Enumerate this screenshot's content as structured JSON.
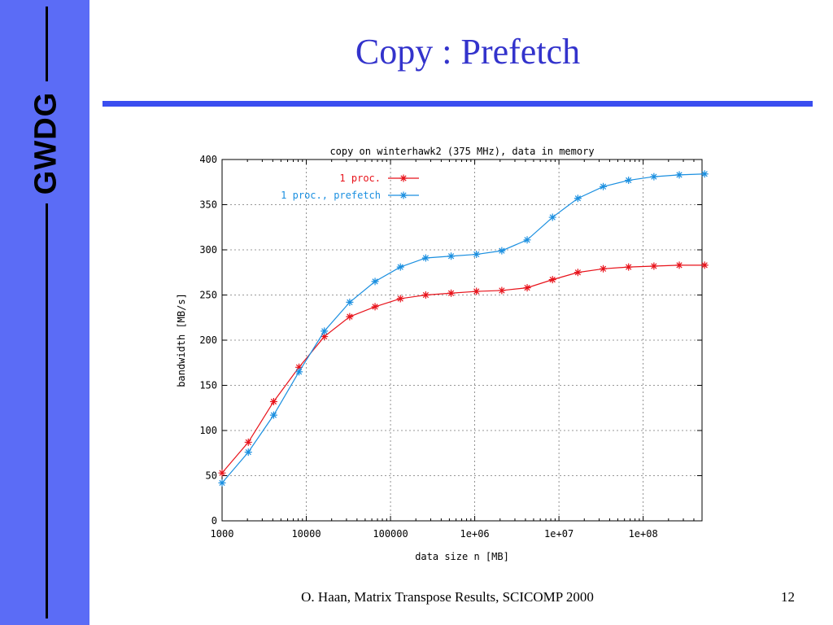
{
  "sidebar": {
    "logo_text": "GWDG",
    "color": "#5b6cf6"
  },
  "slide": {
    "title": "Copy : Prefetch",
    "footer": "O. Haan, Matrix Transpose Results, SCICOMP 2000",
    "page_number": "12"
  },
  "chart_data": {
    "type": "line",
    "title": "copy on winterhawk2 (375 MHz), data in memory",
    "xlabel": "data size n [MB]",
    "ylabel": "bandwidth [MB/s]",
    "xscale": "log",
    "xlim": [
      1000,
      500000000
    ],
    "ylim": [
      0,
      400
    ],
    "grid": true,
    "legend_position": "top-right",
    "x_tick_labels": [
      "1000",
      "10000",
      "100000",
      "1e+06",
      "1e+07",
      "1e+08"
    ],
    "y_tick_labels": [
      "0",
      "50",
      "100",
      "150",
      "200",
      "250",
      "300",
      "350",
      "400"
    ],
    "x": [
      1000,
      2048,
      4096,
      8192,
      16384,
      32768,
      65536,
      131072,
      262144,
      524288,
      1048576,
      2097152,
      4194304,
      8388608,
      16777216,
      33554432,
      67108864,
      134217728,
      268435456,
      536870912
    ],
    "series": [
      {
        "name": "1 proc.",
        "color": "#e8121a",
        "values": [
          53,
          87,
          132,
          170,
          204,
          226,
          237,
          246,
          250,
          252,
          254,
          255,
          258,
          267,
          275,
          279,
          281,
          282,
          283,
          283
        ]
      },
      {
        "name": "1 proc., prefetch",
        "color": "#1a8fe0",
        "values": [
          42,
          76,
          117,
          165,
          210,
          242,
          265,
          281,
          291,
          293,
          295,
          299,
          311,
          336,
          357,
          370,
          377,
          381,
          383,
          384
        ]
      }
    ]
  }
}
